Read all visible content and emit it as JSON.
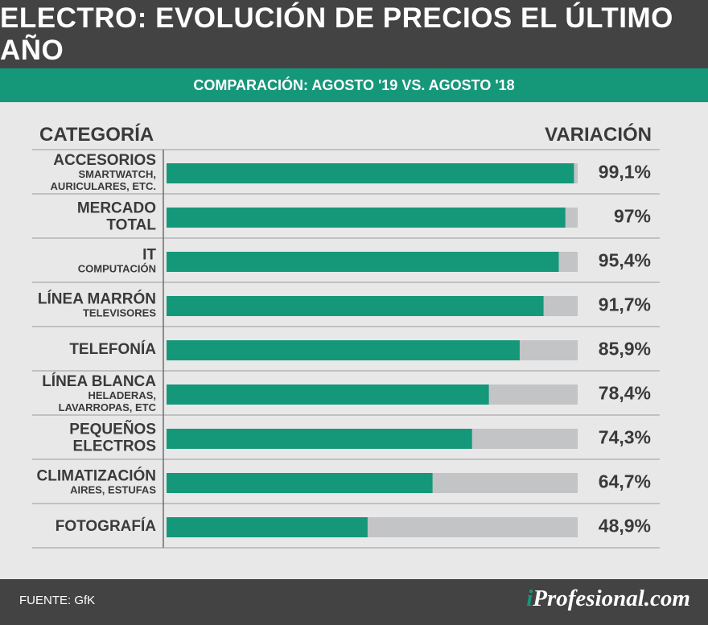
{
  "header": {
    "title": "ELECTRO: EVOLUCIÓN DE PRECIOS EL ÚLTIMO AÑO",
    "subtitle": "COMPARACIÓN: AGOSTO '19 VS. AGOSTO '18"
  },
  "columns": {
    "category": "CATEGORÍA",
    "variation": "VARIACIÓN"
  },
  "footer": {
    "source": "FUENTE: GfK",
    "brand_i": "i",
    "brand_rest": "Profesional.com"
  },
  "colors": {
    "bar": "#15977a",
    "track": "#c2c4c5",
    "header_bg": "#434343",
    "panel": "#e8e8e8",
    "text": "#3a3a3a"
  },
  "chart_data": {
    "type": "bar",
    "orientation": "horizontal",
    "xlim": [
      0,
      100
    ],
    "categories": [
      {
        "label": "ACCESORIOS",
        "sublabel": "SMARTWATCH,\nAURICULARES, ETC.",
        "value": 99.1,
        "value_label": "99,1%"
      },
      {
        "label": "MERCADO\nTOTAL",
        "sublabel": "",
        "value": 97,
        "value_label": "97%"
      },
      {
        "label": "IT",
        "sublabel": "COMPUTACIÓN",
        "value": 95.4,
        "value_label": "95,4%"
      },
      {
        "label": "LÍNEA MARRÓN",
        "sublabel": "TELEVISORES",
        "value": 91.7,
        "value_label": "91,7%"
      },
      {
        "label": "TELEFONÍA",
        "sublabel": "",
        "value": 85.9,
        "value_label": "85,9%"
      },
      {
        "label": "LÍNEA BLANCA",
        "sublabel": "HELADERAS,\nLAVARROPAS, ETC",
        "value": 78.4,
        "value_label": "78,4%"
      },
      {
        "label": "PEQUEÑOS\nELECTROS",
        "sublabel": "",
        "value": 74.3,
        "value_label": "74,3%"
      },
      {
        "label": "CLIMATIZACIÓN",
        "sublabel": "AIRES, ESTUFAS",
        "value": 64.7,
        "value_label": "64,7%"
      },
      {
        "label": "FOTOGRAFÍA",
        "sublabel": "",
        "value": 48.9,
        "value_label": "48,9%"
      }
    ]
  }
}
